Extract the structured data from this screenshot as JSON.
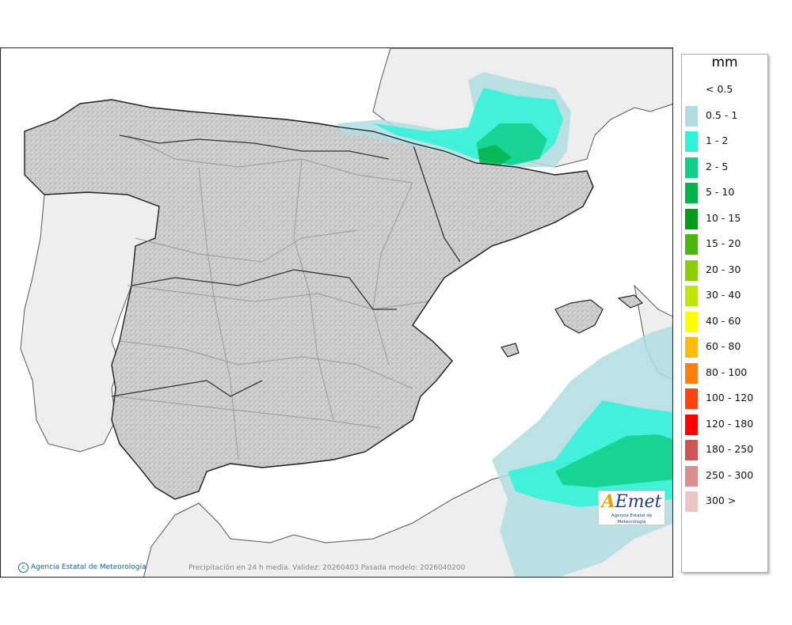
{
  "map": {
    "title_caption": "Precipitación en 24 h media. Validez: 20260403 Pasada modelo: 2026040200",
    "copyright": "Agencia Estatal de Meteorología",
    "logo": {
      "mark": "AEmet",
      "subtitle": "Agencia Estatal de Meteorología"
    },
    "colors": {
      "sea": "#ffffff",
      "land_other": "#eeeeee",
      "spain_relief": "#c9c9c9",
      "borders": "#222222",
      "region_lines": "#9a9a9a"
    }
  },
  "legend": {
    "unit": "mm",
    "items": [
      {
        "label": "< 0.5",
        "color": ""
      },
      {
        "label": "0.5 - 1",
        "color": "#b0dde2"
      },
      {
        "label": "1 - 2",
        "color": "#2ef2d8"
      },
      {
        "label": "2 - 5",
        "color": "#10d088"
      },
      {
        "label": "5 - 10",
        "color": "#05b34b"
      },
      {
        "label": "10 - 15",
        "color": "#059a1a"
      },
      {
        "label": "15 - 20",
        "color": "#4db611"
      },
      {
        "label": "20 - 30",
        "color": "#8bcf09"
      },
      {
        "label": "30 - 40",
        "color": "#c1e40a"
      },
      {
        "label": "40 - 60",
        "color": "#ffff00"
      },
      {
        "label": "60 - 80",
        "color": "#ffbb11"
      },
      {
        "label": "80 - 100",
        "color": "#ff7f11"
      },
      {
        "label": "100 - 120",
        "color": "#ff4411"
      },
      {
        "label": "120 - 180",
        "color": "#ff0000"
      },
      {
        "label": "180 - 250",
        "color": "#cc5555"
      },
      {
        "label": "250 - 300",
        "color": "#dd8d8d"
      },
      {
        "label": "300 >",
        "color": "#efc6c6"
      }
    ]
  },
  "precip_areas": [
    {
      "name": "Pyrenees / Navarra",
      "color_class": "2 - 5"
    },
    {
      "name": "Bay of Biscay coast",
      "color_class": "1 - 2"
    },
    {
      "name": "Western Mediterranean (south-east)",
      "color_class": "2 - 5"
    }
  ]
}
